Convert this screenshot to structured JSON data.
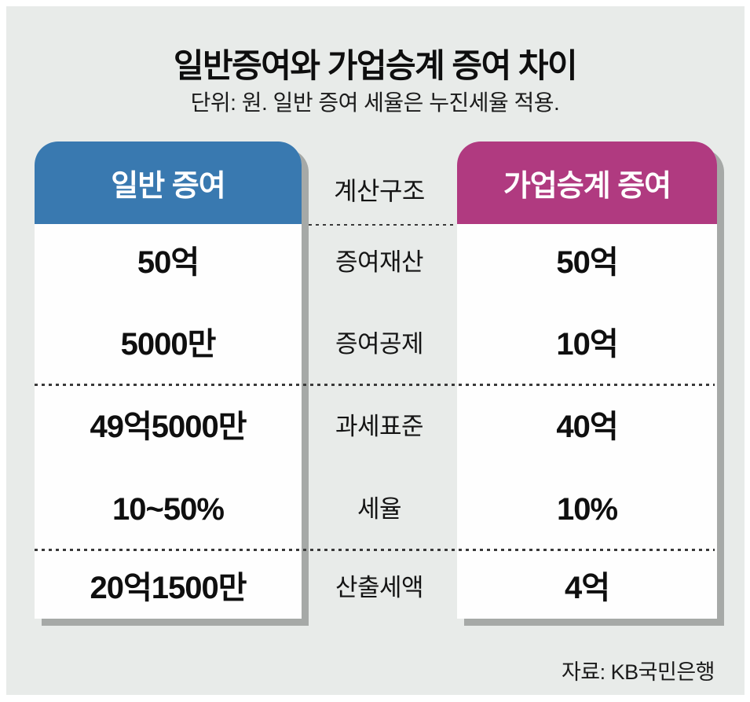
{
  "title": "일반증여와 가업승계 증여 차이",
  "subtitle": "단위: 원. 일반 증여 세율은 누진세율 적용.",
  "source": "자료: KB국민은행",
  "colors": {
    "general_header": "#3979b0",
    "succession_header": "#b03a80",
    "panel_background": "#e8ebe9",
    "card_shadow": "#a6a9a7"
  },
  "chart_data": {
    "type": "table",
    "title": "일반증여와 가업승계 증여 차이",
    "subtitle": "단위: 원. 일반 증여 세율은 누진세율 적용.",
    "source": "자료: KB국민은행",
    "columns": {
      "left": "일반 증여",
      "center": "계산구조",
      "right": "가업승계 증여"
    },
    "rows": [
      {
        "label": "증여재산",
        "general": "50억",
        "succession": "50억"
      },
      {
        "label": "증여공제",
        "general": "5000만",
        "succession": "10억"
      },
      {
        "label": "과세표준",
        "general": "49억5000만",
        "succession": "40억"
      },
      {
        "label": "세율",
        "general": "10~50%",
        "succession": "10%"
      },
      {
        "label": "산출세액",
        "general": "20억1500만",
        "succession": "4억"
      }
    ]
  }
}
